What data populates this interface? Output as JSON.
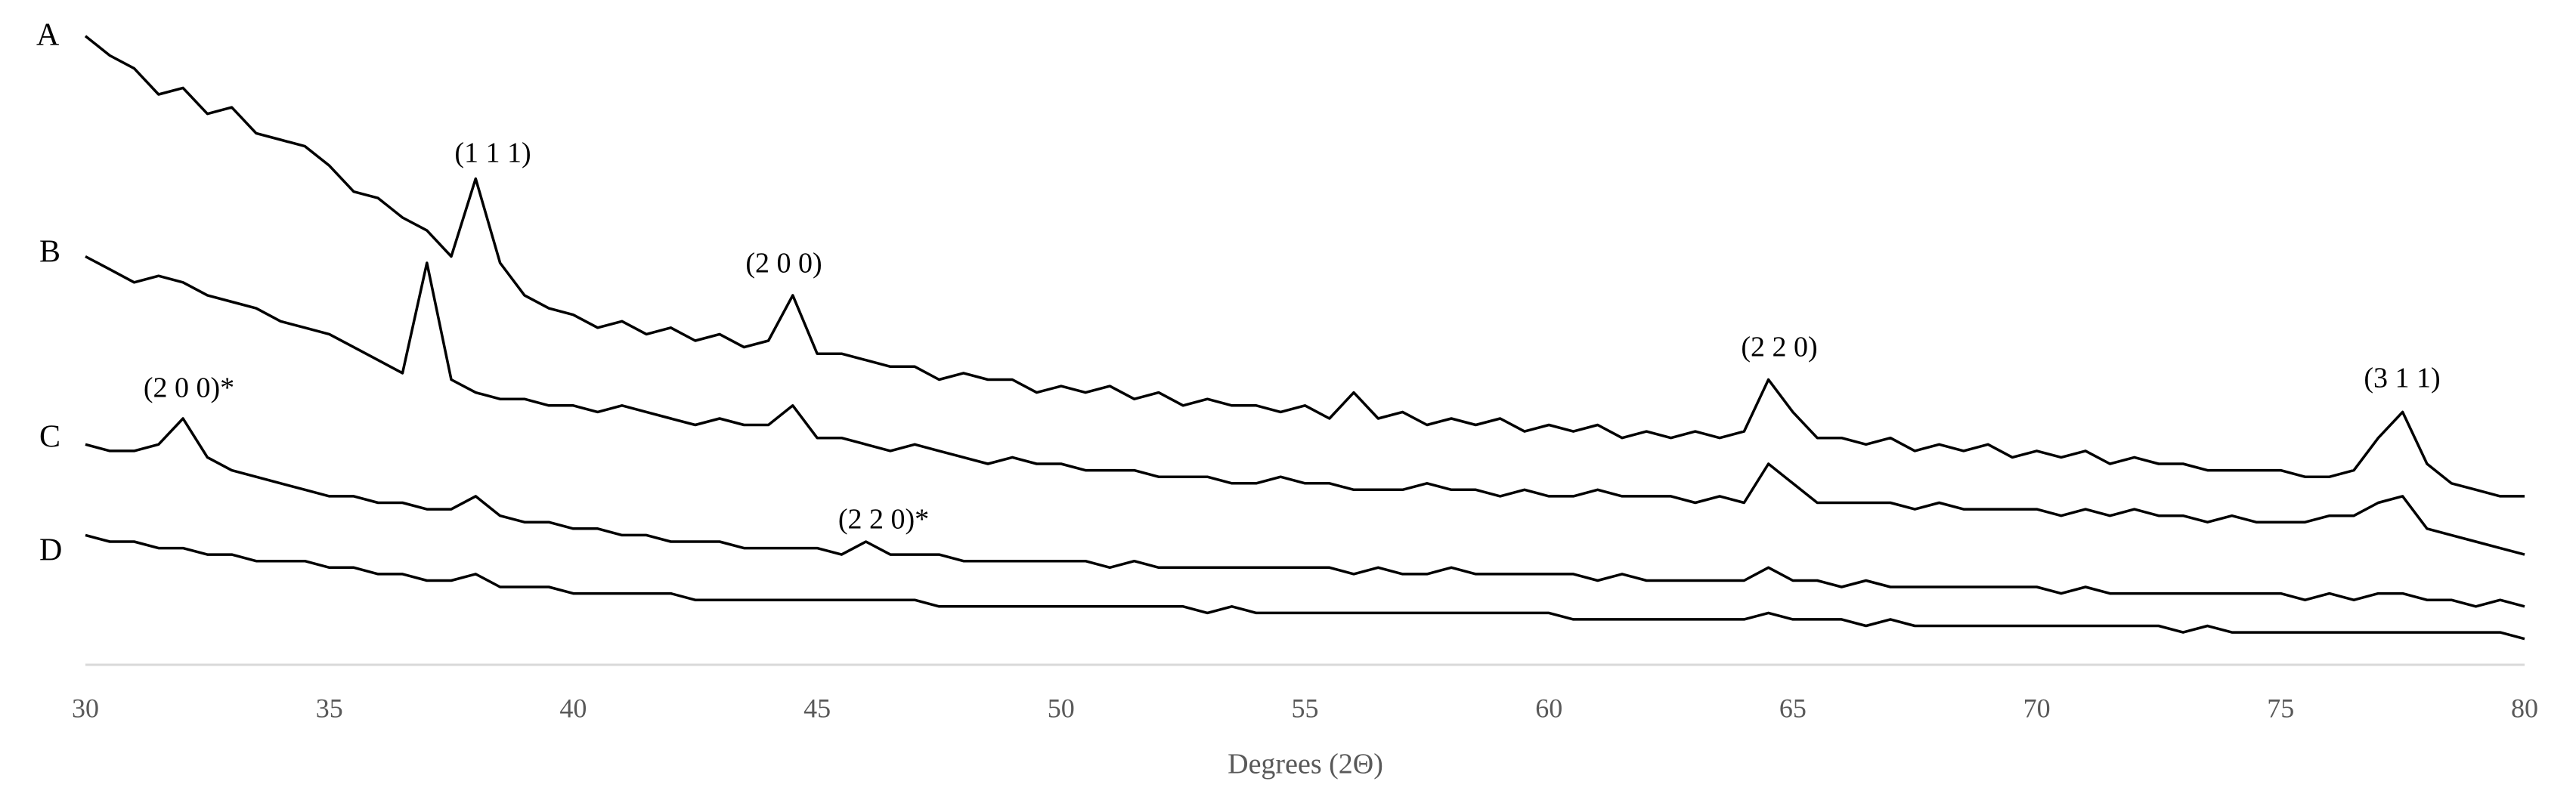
{
  "chart_data": {
    "type": "line",
    "x_label": "Degrees (2Θ)",
    "x": [
      30,
      30.5,
      31,
      31.5,
      32,
      32.5,
      33,
      33.5,
      34,
      34.5,
      35,
      35.5,
      36,
      36.5,
      37,
      37.5,
      38,
      38.5,
      39,
      39.5,
      40,
      40.5,
      41,
      41.5,
      42,
      42.5,
      43,
      43.5,
      44,
      44.5,
      45,
      45.5,
      46,
      46.5,
      47,
      47.5,
      48,
      48.5,
      49,
      49.5,
      50,
      50.5,
      51,
      51.5,
      52,
      52.5,
      53,
      53.5,
      54,
      54.5,
      55,
      55.5,
      56,
      56.5,
      57,
      57.5,
      58,
      58.5,
      59,
      59.5,
      60,
      60.5,
      61,
      61.5,
      62,
      62.5,
      63,
      63.5,
      64,
      64.5,
      65,
      65.5,
      66,
      66.5,
      67,
      67.5,
      68,
      68.5,
      69,
      69.5,
      70,
      70.5,
      71,
      71.5,
      72,
      72.5,
      73,
      73.5,
      74,
      74.5,
      75,
      75.5,
      76,
      76.5,
      77,
      77.5,
      78,
      78.5,
      79,
      79.5,
      80
    ],
    "series": [
      {
        "name": "A",
        "color": "#000000",
        "values": [
          97,
          94,
          92,
          88,
          89,
          85,
          86,
          82,
          81,
          80,
          77,
          73,
          72,
          69,
          67,
          63,
          75,
          62,
          57,
          55,
          54,
          52,
          53,
          51,
          52,
          50,
          51,
          49,
          50,
          57,
          48,
          48,
          47,
          46,
          46,
          44,
          45,
          44,
          44,
          42,
          43,
          42,
          43,
          41,
          42,
          40,
          41,
          40,
          40,
          39,
          40,
          38,
          42,
          38,
          39,
          37,
          38,
          37,
          38,
          36,
          37,
          36,
          37,
          35,
          36,
          35,
          36,
          35,
          36,
          44,
          39,
          35,
          35,
          34,
          35,
          33,
          34,
          33,
          34,
          32,
          33,
          32,
          33,
          31,
          32,
          31,
          31,
          30,
          30,
          30,
          30,
          29,
          29,
          30,
          35,
          39,
          31,
          28,
          27,
          26,
          26
        ]
      },
      {
        "name": "B",
        "color": "#000000",
        "values": [
          63,
          61,
          59,
          60,
          59,
          57,
          56,
          55,
          53,
          52,
          51,
          49,
          47,
          45,
          62,
          44,
          42,
          41,
          41,
          40,
          40,
          39,
          40,
          39,
          38,
          37,
          38,
          37,
          37,
          40,
          35,
          35,
          34,
          33,
          34,
          33,
          32,
          31,
          32,
          31,
          31,
          30,
          30,
          30,
          29,
          29,
          29,
          28,
          28,
          29,
          28,
          28,
          27,
          27,
          27,
          28,
          27,
          27,
          26,
          27,
          26,
          26,
          27,
          26,
          26,
          26,
          25,
          26,
          25,
          31,
          28,
          25,
          25,
          25,
          25,
          24,
          25,
          24,
          24,
          24,
          24,
          23,
          24,
          23,
          24,
          23,
          23,
          22,
          23,
          22,
          22,
          22,
          23,
          23,
          25,
          26,
          21,
          20,
          19,
          18,
          17
        ]
      },
      {
        "name": "C",
        "color": "#000000",
        "values": [
          34,
          33,
          33,
          34,
          38,
          32,
          30,
          29,
          28,
          27,
          26,
          26,
          25,
          25,
          24,
          24,
          26,
          23,
          22,
          22,
          21,
          21,
          20,
          20,
          19,
          19,
          19,
          18,
          18,
          18,
          18,
          17,
          19,
          17,
          17,
          17,
          16,
          16,
          16,
          16,
          16,
          16,
          15,
          16,
          15,
          15,
          15,
          15,
          15,
          15,
          15,
          15,
          14,
          15,
          14,
          14,
          15,
          14,
          14,
          14,
          14,
          14,
          13,
          14,
          13,
          13,
          13,
          13,
          13,
          15,
          13,
          13,
          12,
          13,
          12,
          12,
          12,
          12,
          12,
          12,
          12,
          11,
          12,
          11,
          11,
          11,
          11,
          11,
          11,
          11,
          11,
          10,
          11,
          10,
          11,
          11,
          10,
          10,
          9,
          10,
          9
        ]
      },
      {
        "name": "D",
        "color": "#000000",
        "values": [
          20,
          19,
          19,
          18,
          18,
          17,
          17,
          16,
          16,
          16,
          15,
          15,
          14,
          14,
          13,
          13,
          14,
          12,
          12,
          12,
          11,
          11,
          11,
          11,
          11,
          10,
          10,
          10,
          10,
          10,
          10,
          10,
          10,
          10,
          10,
          9,
          9,
          9,
          9,
          9,
          9,
          9,
          9,
          9,
          9,
          9,
          8,
          9,
          8,
          8,
          8,
          8,
          8,
          8,
          8,
          8,
          8,
          8,
          8,
          8,
          8,
          7,
          7,
          7,
          7,
          7,
          7,
          7,
          7,
          8,
          7,
          7,
          7,
          6,
          7,
          6,
          6,
          6,
          6,
          6,
          6,
          6,
          6,
          6,
          6,
          6,
          5,
          6,
          5,
          5,
          5,
          5,
          5,
          5,
          5,
          5,
          5,
          5,
          5,
          5,
          4
        ]
      }
    ],
    "annotations": [
      "(1 1 1)",
      "(2 0 0)",
      "(2 2 0)",
      "(3 1 1)",
      "(2 0 0)*",
      "(2 2 0)*"
    ],
    "xlim": [
      30,
      80
    ],
    "ylim": [
      0,
      100
    ],
    "xticks": [
      30,
      35,
      40,
      45,
      50,
      55,
      60,
      65,
      70,
      75,
      80
    ]
  }
}
